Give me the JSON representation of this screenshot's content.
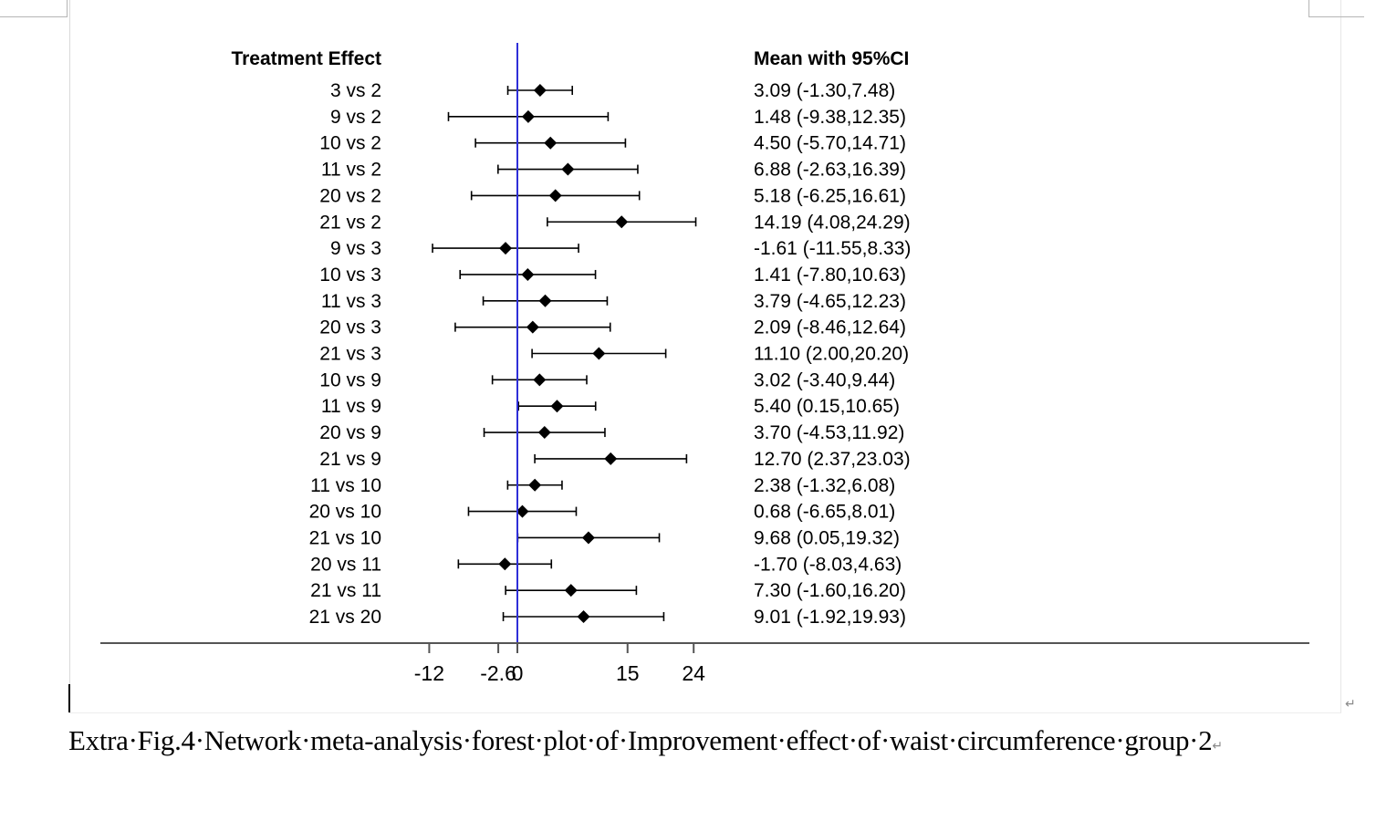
{
  "chart_data": {
    "type": "forest",
    "header_left": "Treatment Effect",
    "header_right": "Mean with 95%CI",
    "x_ticks": [
      "-12",
      "-2.6",
      "0",
      "15",
      "24"
    ],
    "reference_line_x": 0,
    "reference_line_color": "#2e2ed8",
    "rows": [
      {
        "label": "3 vs 2",
        "mean": 3.09,
        "low": -1.3,
        "high": 7.48,
        "text": "3.09 (-1.30,7.48)"
      },
      {
        "label": "9 vs 2",
        "mean": 1.48,
        "low": -9.38,
        "high": 12.35,
        "text": "1.48 (-9.38,12.35)"
      },
      {
        "label": "10 vs 2",
        "mean": 4.5,
        "low": -5.7,
        "high": 14.71,
        "text": "4.50 (-5.70,14.71)"
      },
      {
        "label": "11 vs 2",
        "mean": 6.88,
        "low": -2.63,
        "high": 16.39,
        "text": "6.88 (-2.63,16.39)"
      },
      {
        "label": "20 vs 2",
        "mean": 5.18,
        "low": -6.25,
        "high": 16.61,
        "text": "5.18 (-6.25,16.61)"
      },
      {
        "label": "21 vs 2",
        "mean": 14.19,
        "low": 4.08,
        "high": 24.29,
        "text": "14.19 (4.08,24.29)"
      },
      {
        "label": "9 vs 3",
        "mean": -1.61,
        "low": -11.55,
        "high": 8.33,
        "text": "-1.61 (-11.55,8.33)"
      },
      {
        "label": "10 vs 3",
        "mean": 1.41,
        "low": -7.8,
        "high": 10.63,
        "text": "1.41 (-7.80,10.63)"
      },
      {
        "label": "11 vs 3",
        "mean": 3.79,
        "low": -4.65,
        "high": 12.23,
        "text": "3.79 (-4.65,12.23)"
      },
      {
        "label": "20 vs 3",
        "mean": 2.09,
        "low": -8.46,
        "high": 12.64,
        "text": "2.09 (-8.46,12.64)"
      },
      {
        "label": "21 vs 3",
        "mean": 11.1,
        "low": 2.0,
        "high": 20.2,
        "text": "11.10 (2.00,20.20)"
      },
      {
        "label": "10 vs 9",
        "mean": 3.02,
        "low": -3.4,
        "high": 9.44,
        "text": "3.02 (-3.40,9.44)"
      },
      {
        "label": "11 vs 9",
        "mean": 5.4,
        "low": 0.15,
        "high": 10.65,
        "text": "5.40 (0.15,10.65)"
      },
      {
        "label": "20 vs 9",
        "mean": 3.7,
        "low": -4.53,
        "high": 11.92,
        "text": "3.70 (-4.53,11.92)"
      },
      {
        "label": "21 vs 9",
        "mean": 12.7,
        "low": 2.37,
        "high": 23.03,
        "text": "12.70 (2.37,23.03)"
      },
      {
        "label": "11 vs 10",
        "mean": 2.38,
        "low": -1.32,
        "high": 6.08,
        "text": "2.38 (-1.32,6.08)"
      },
      {
        "label": "20 vs 10",
        "mean": 0.68,
        "low": -6.65,
        "high": 8.01,
        "text": "0.68 (-6.65,8.01)"
      },
      {
        "label": "21 vs 10",
        "mean": 9.68,
        "low": 0.05,
        "high": 19.32,
        "text": "9.68 (0.05,19.32)"
      },
      {
        "label": "20 vs 11",
        "mean": -1.7,
        "low": -8.03,
        "high": 4.63,
        "text": "-1.70 (-8.03,4.63)"
      },
      {
        "label": "21 vs 11",
        "mean": 7.3,
        "low": -1.6,
        "high": 16.2,
        "text": "7.30 (-1.60,16.20)"
      },
      {
        "label": "21 vs 20",
        "mean": 9.01,
        "low": -1.92,
        "high": 19.93,
        "text": "9.01 (-1.92,19.93)"
      }
    ]
  },
  "caption": {
    "text": "Extra·Fig.4·Network·meta-analysis·forest·plot·of·Improvement·effect·of·waist·circumference·group·2",
    "paragraph_mark": "↵"
  },
  "page_paragraph_mark": "↵"
}
